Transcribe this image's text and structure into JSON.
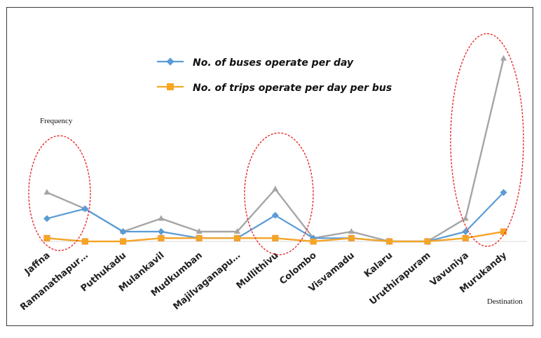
{
  "chart_data": {
    "type": "line",
    "title": "",
    "xlabel": "Destination",
    "ylabel": "Frequency",
    "categories": [
      "Jaffna",
      "Ramanathapur…",
      "Puthukadu",
      "Mulankavil",
      "Mudkumban",
      "Majilvaganapu…",
      "Mullithivu",
      "Colombo",
      "Visvamadu",
      "Kalaru",
      "Uruthirapuram",
      "Vavuniya",
      "Murukandy"
    ],
    "series": [
      {
        "name": "No. of buses operate per day",
        "color": "#5b9bd5",
        "marker": "diamond",
        "values": [
          7,
          10,
          3,
          3,
          1,
          1,
          8,
          1,
          1,
          0,
          0,
          3,
          15
        ]
      },
      {
        "name": "No. of trips operate per day per bus",
        "color": "#f5a623",
        "marker": "square",
        "values": [
          1,
          0,
          0,
          1,
          1,
          1,
          1,
          0,
          1,
          0,
          0,
          1,
          3
        ]
      },
      {
        "color": "#a5a5a5",
        "values": [
          15,
          10,
          3,
          7,
          3,
          3,
          16,
          1,
          3,
          0,
          0,
          7,
          56
        ]
      },
      {
        "color": "#ed7d31",
        "values": [
          1,
          0,
          0,
          1,
          1,
          1,
          1,
          0,
          1,
          0,
          0,
          1,
          3
        ]
      }
    ],
    "ylim": [
      0,
      60
    ],
    "grid": false,
    "legend": "top-center",
    "highlight_color": "#e82a2a"
  }
}
